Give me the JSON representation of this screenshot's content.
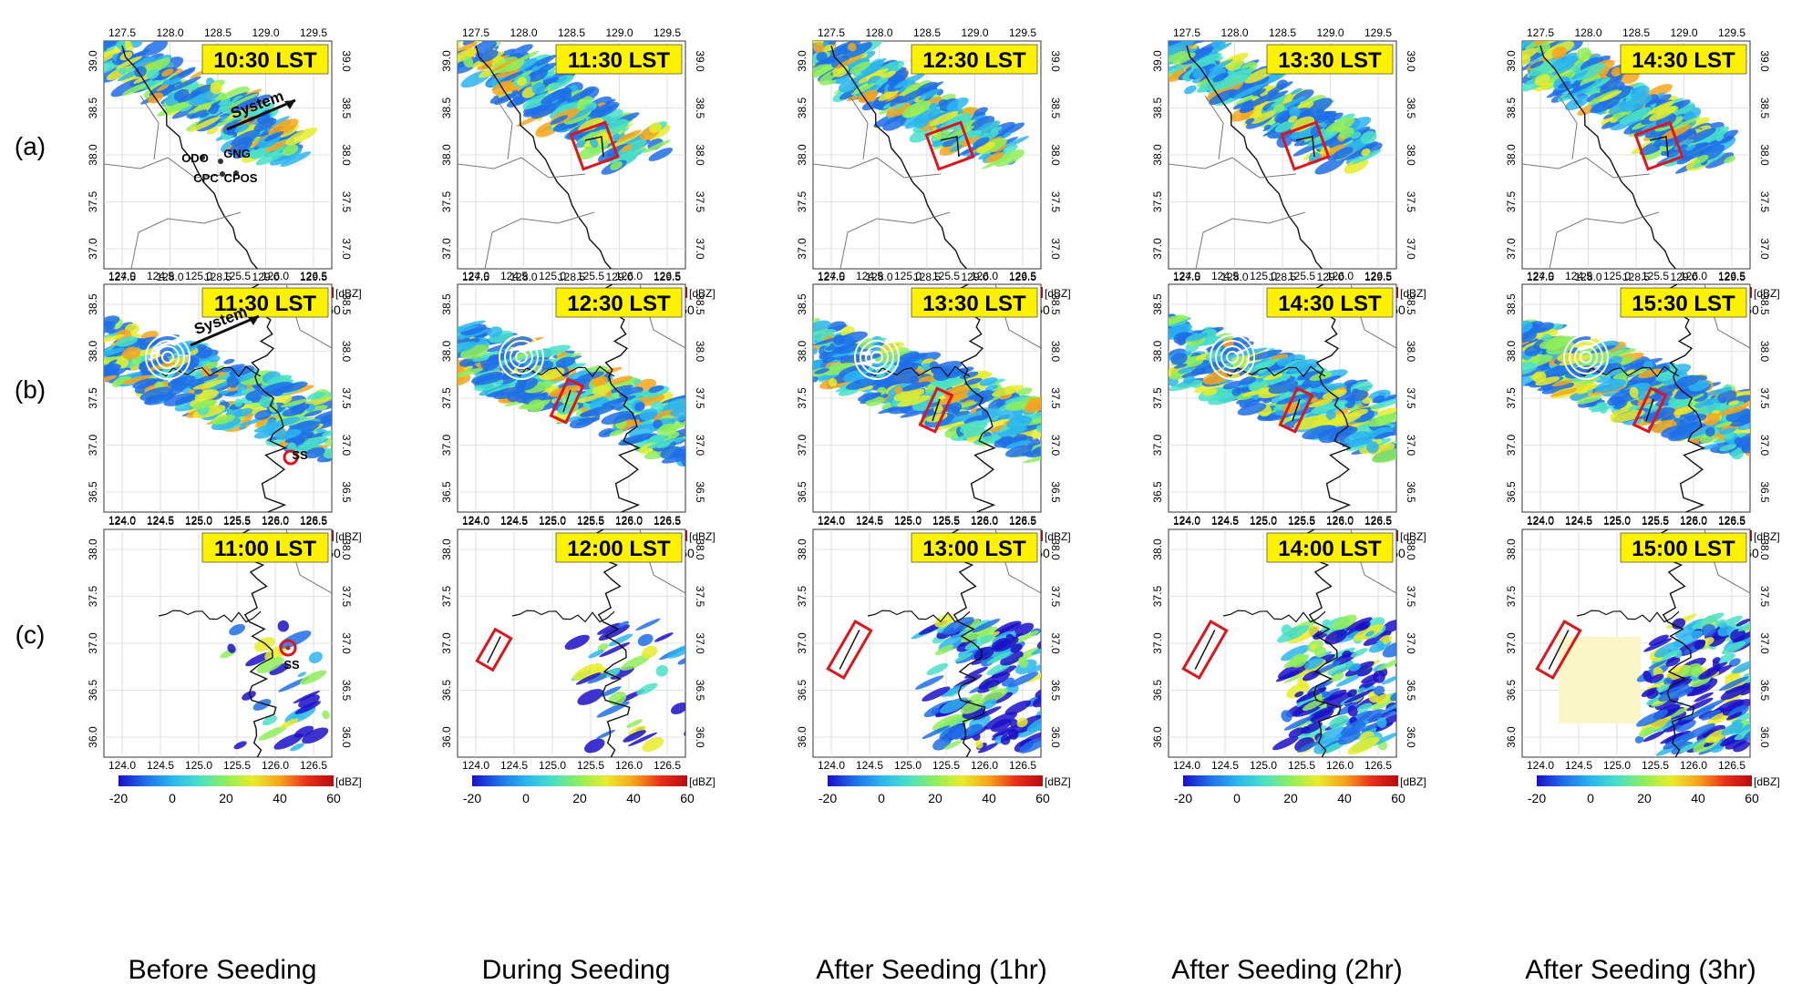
{
  "rows": [
    {
      "label": "(a)",
      "lon_ticks": [
        "127.5",
        "128.0",
        "128.5",
        "129.0",
        "129.5"
      ],
      "lat_ticks": [
        "39.0",
        "38.5",
        "38.0",
        "37.5",
        "37.0"
      ],
      "times": [
        "10:30 LST",
        "11:30 LST",
        "12:30 LST",
        "13:30 LST",
        "14:30 LST"
      ],
      "annotations": {
        "system": "System",
        "sites": [
          "ODO",
          "GNG",
          "CPC",
          "CPOS"
        ]
      }
    },
    {
      "label": "(b)",
      "lon_ticks": [
        "124.0",
        "124.5",
        "125.0",
        "125.5",
        "126.0",
        "126.5"
      ],
      "lat_ticks": [
        "38.5",
        "38.0",
        "37.5",
        "37.0",
        "36.5"
      ],
      "times": [
        "11:30 LST",
        "12:30 LST",
        "13:30 LST",
        "14:30 LST",
        "15:30 LST"
      ],
      "annotations": {
        "system": "System",
        "sites": [
          "SS"
        ]
      }
    },
    {
      "label": "(c)",
      "lon_ticks": [
        "124.0",
        "124.5",
        "125.0",
        "125.5",
        "126.0",
        "126.5"
      ],
      "lat_ticks": [
        "38.0",
        "37.5",
        "37.0",
        "36.5",
        "36.0"
      ],
      "times": [
        "11:00 LST",
        "12:00 LST",
        "13:00 LST",
        "14:00 LST",
        "15:00 LST"
      ],
      "annotations": {
        "sites": [
          "SS"
        ]
      }
    }
  ],
  "colorbar": {
    "ticks": [
      "-20",
      "0",
      "20",
      "40",
      "60"
    ],
    "unit": "[dBZ]",
    "colors": [
      "#1a0fc8",
      "#1f6fe8",
      "#2bb5f0",
      "#49e0c8",
      "#8fef5a",
      "#e8ec2a",
      "#f7a51c",
      "#e8301a",
      "#b80c10"
    ]
  },
  "columns": [
    "Before Seeding",
    "During Seeding",
    "After Seeding (1hr)",
    "After Seeding (2hr)",
    "After Seeding (3hr)"
  ],
  "colors": {
    "time_label_bg": "#fff200",
    "seeding_box": "#e0141c"
  }
}
